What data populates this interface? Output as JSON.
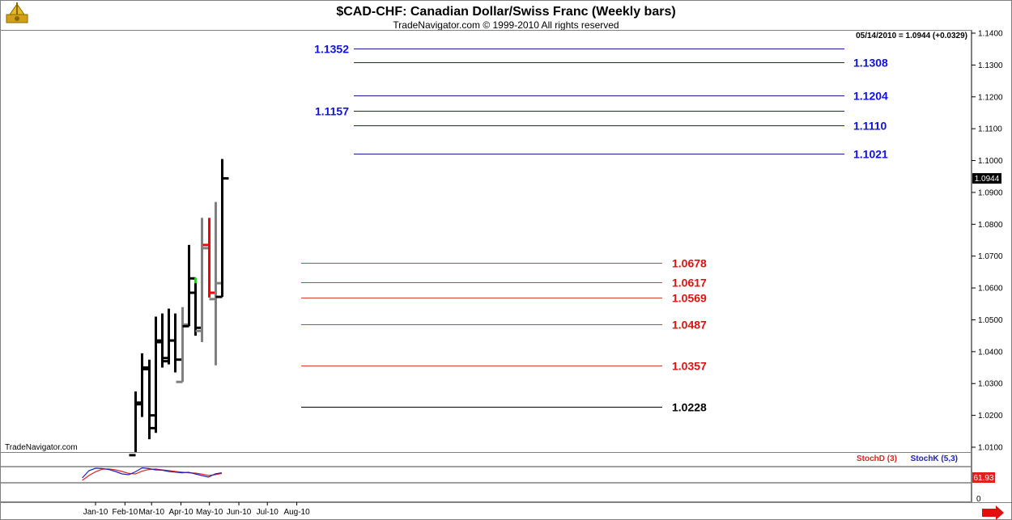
{
  "header": {
    "title": "$CAD-CHF:  Canadian Dollar/Swiss Franc  (Weekly bars)",
    "subtitle": "TradeNavigator.com © 1999-2010 All rights reserved",
    "last_info": "05/14/2010 = 1.0944 (+0.0329)",
    "watermark": "TradeNavigator.com",
    "price_box": "1.0944"
  },
  "colors": {
    "up_bar": "#000000",
    "down_bar": "#808080",
    "red_bar": "#ff0000",
    "green_tick": "#33cc33",
    "blue_level": "#1a1aa0",
    "red_level": "#e03c2c",
    "black_level": "#000000",
    "stoch_d": "#e02020",
    "stoch_k": "#2020c0",
    "blue_label": "#1010e0",
    "red_label": "#e01010"
  },
  "chart_data": {
    "type": "ohlc",
    "ylim": [
      1.0075,
      1.143
    ],
    "x_tick_labels": [
      "Jan-10",
      "Feb-10",
      "Mar-10",
      "Apr-10",
      "May-10",
      "Jun-10",
      "Jul-10",
      "Aug-10"
    ],
    "y_tick_labels": [
      "1.0100",
      "1.0200",
      "1.0300",
      "1.0400",
      "1.0500",
      "1.0600",
      "1.0700",
      "1.0800",
      "1.0900",
      "1.1000",
      "1.1100",
      "1.1200",
      "1.1300",
      "1.1400"
    ],
    "bars": [
      {
        "date": "2010-02-12",
        "open": 1.0075,
        "high": 1.0275,
        "low": 1.0075,
        "close": 1.0235,
        "color": "black"
      },
      {
        "date": "2010-02-19",
        "open": 1.024,
        "high": 1.0395,
        "low": 1.0195,
        "close": 1.035,
        "color": "black"
      },
      {
        "date": "2010-02-26",
        "open": 1.0345,
        "high": 1.0375,
        "low": 1.0125,
        "close": 1.02,
        "color": "black"
      },
      {
        "date": "2010-03-05",
        "open": 1.016,
        "high": 1.051,
        "low": 1.0145,
        "close": 1.0435,
        "color": "black"
      },
      {
        "date": "2010-03-12",
        "open": 1.043,
        "high": 1.052,
        "low": 1.035,
        "close": 1.038,
        "color": "black"
      },
      {
        "date": "2010-03-19",
        "open": 1.037,
        "high": 1.0535,
        "low": 1.036,
        "close": 1.0435,
        "color": "black"
      },
      {
        "date": "2010-03-26",
        "open": 1.0435,
        "high": 1.052,
        "low": 1.0335,
        "close": 1.0375,
        "color": "black"
      },
      {
        "date": "2010-04-02",
        "open": 1.0305,
        "high": 1.054,
        "low": 1.0305,
        "close": 1.0485,
        "color": "grey"
      },
      {
        "date": "2010-04-09",
        "open": 1.048,
        "high": 1.0735,
        "low": 1.048,
        "close": 1.063,
        "color": "black"
      },
      {
        "date": "2010-04-16",
        "open": 1.0585,
        "high": 1.0615,
        "low": 1.045,
        "close": 1.0475,
        "color": "black",
        "high_mark": 1.0632
      },
      {
        "date": "2010-04-23",
        "open": 1.0465,
        "high": 1.082,
        "low": 1.043,
        "close": 1.0725,
        "color": "grey"
      },
      {
        "date": "2010-04-30",
        "open": 1.0735,
        "high": 1.082,
        "low": 1.057,
        "close": 1.0585,
        "color": "red"
      },
      {
        "date": "2010-05-07",
        "open": 1.0565,
        "high": 1.087,
        "low": 1.0357,
        "close": 1.0615,
        "color": "grey"
      },
      {
        "date": "2010-05-14",
        "open": 1.0572,
        "high": 1.1005,
        "low": 1.0572,
        "close": 1.0944,
        "color": "black"
      }
    ],
    "levels": [
      {
        "value": 1.1352,
        "label": "1.1352",
        "group": "blue",
        "label_side": "left"
      },
      {
        "value": 1.1308,
        "label": "1.1308",
        "group": "blue",
        "label_side": "right"
      },
      {
        "value": 1.1204,
        "label": "1.1204",
        "group": "blue",
        "label_side": "right"
      },
      {
        "value": 1.1157,
        "label": "1.1157",
        "group": "blue",
        "label_side": "left"
      },
      {
        "value": 1.111,
        "label": "1.1110",
        "group": "blue",
        "label_side": "right"
      },
      {
        "value": 1.1021,
        "label": "1.1021",
        "group": "blue",
        "label_side": "right"
      },
      {
        "value": 1.0678,
        "label": "1.0678",
        "group": "red",
        "label_side": "right"
      },
      {
        "value": 1.0617,
        "label": "1.0617",
        "group": "red",
        "label_side": "right"
      },
      {
        "value": 1.0569,
        "label": "1.0569",
        "group": "red",
        "label_side": "right"
      },
      {
        "value": 1.0487,
        "label": "1.0487",
        "group": "red",
        "label_side": "right"
      },
      {
        "value": 1.0357,
        "label": "1.0357",
        "group": "red",
        "label_side": "right"
      },
      {
        "value": 1.0228,
        "label": "1.0228",
        "group": "black",
        "label_side": "right"
      }
    ],
    "stochastics": {
      "d_label": "StochD (3)",
      "k_label": "StochK (5,3)",
      "value_box": "61.93",
      "axis_labels": [
        "0"
      ],
      "ylim": [
        0,
        100
      ],
      "dates": [
        "2009-12-18",
        "2009-12-25",
        "2010-01-01",
        "2010-01-08",
        "2010-01-15",
        "2010-01-22",
        "2010-01-29",
        "2010-02-05",
        "2010-02-12",
        "2010-02-19",
        "2010-02-26",
        "2010-03-05",
        "2010-03-12",
        "2010-03-19",
        "2010-03-26",
        "2010-04-02",
        "2010-04-09",
        "2010-04-16",
        "2010-04-23",
        "2010-04-30",
        "2010-05-07",
        "2010-05-14"
      ],
      "k": [
        30,
        75,
        90,
        88,
        82,
        70,
        55,
        50,
        68,
        92,
        88,
        80,
        78,
        70,
        66,
        62,
        65,
        55,
        45,
        35,
        55,
        62
      ],
      "d": [
        15,
        45,
        68,
        84,
        86,
        80,
        70,
        58,
        55,
        72,
        82,
        86,
        80,
        76,
        70,
        66,
        62,
        60,
        54,
        45,
        50,
        58
      ]
    }
  }
}
